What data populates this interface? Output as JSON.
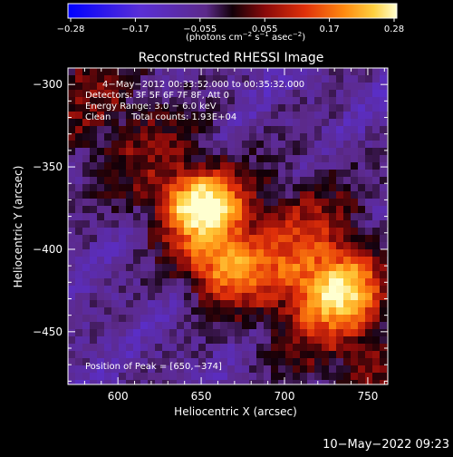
{
  "colorbar": {
    "tick_labels": [
      "−0.28",
      "−0.17",
      "−0.055",
      "0.055",
      "0.17",
      "0.28"
    ],
    "unit_label_main": "(photons cm",
    "unit_sup1": "−2",
    "unit_mid1": " s",
    "unit_sup2": "−1",
    "unit_mid2": " asec",
    "unit_sup3": "−2",
    "unit_end": ")",
    "min": -0.28,
    "max": 0.28
  },
  "chart_data": {
    "type": "heatmap",
    "title": "Reconstructed RHESSI Image",
    "xlabel": "Heliocentric X (arcsec)",
    "ylabel": "Heliocentric Y (arcsec)",
    "xlim": [
      570,
      762
    ],
    "ylim": [
      -482,
      -290
    ],
    "x_ticks": [
      600,
      650,
      700,
      750
    ],
    "y_ticks": [
      -300,
      -350,
      -400,
      -450
    ],
    "x_tick_labels": [
      "600",
      "650",
      "700",
      "750"
    ],
    "y_tick_labels": [
      "−300",
      "−350",
      "−400",
      "−450"
    ],
    "peak": {
      "x": 650,
      "y": -374
    },
    "sources": [
      {
        "x": 650,
        "y": -374,
        "value": 0.28
      },
      {
        "x": 662,
        "y": -410,
        "value": 0.19
      },
      {
        "x": 735,
        "y": -425,
        "value": 0.21
      }
    ],
    "annotations": [
      "4−May−2012 00:33:52.000 to 00:35:32.000",
      "Detectors: 3F 5F 6F 7F 8F, Att 0",
      "Energy Range: 3.0 − 6.0 keV",
      "Clean",
      "Total counts: 1.93E+04",
      "Position of Peak = [650,−374]"
    ]
  },
  "footer": {
    "timestamp": "10−May−2022 09:23"
  }
}
